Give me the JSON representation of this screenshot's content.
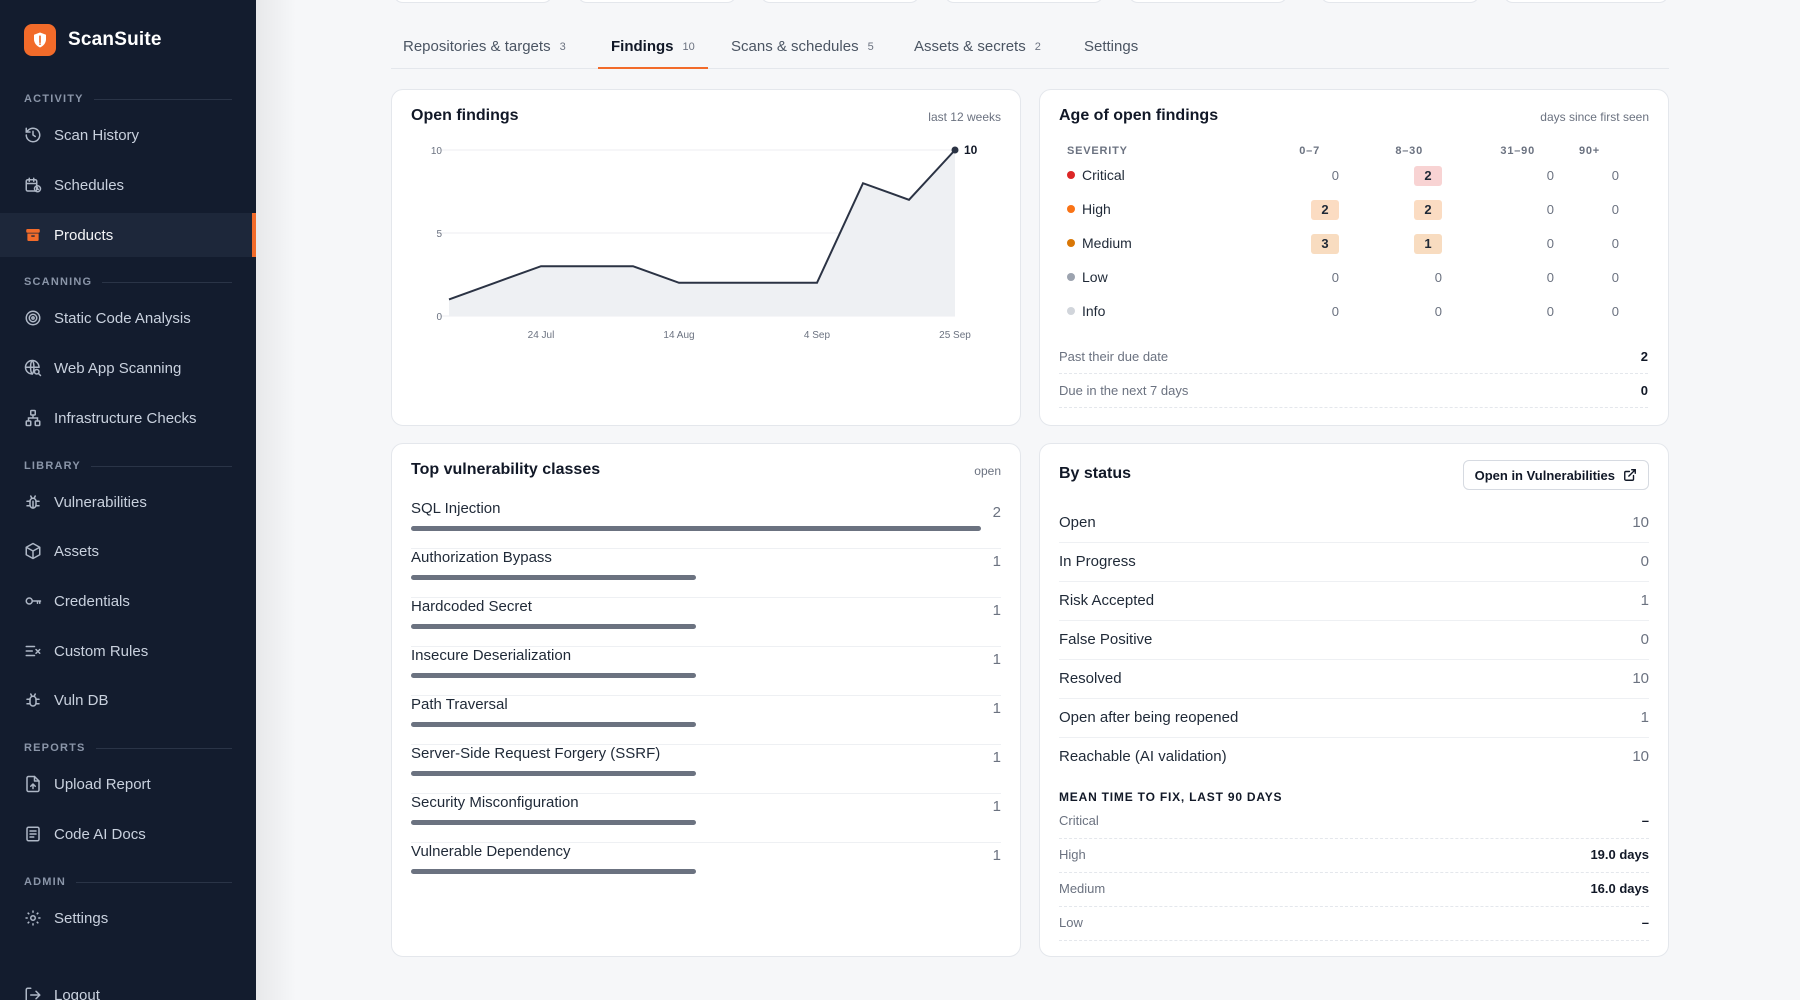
{
  "app": {
    "name": "ScanSuite"
  },
  "sidebar": {
    "sections": [
      {
        "label": "ACTIVITY"
      },
      {
        "label": "SCANNING"
      },
      {
        "label": "LIBRARY"
      },
      {
        "label": "REPORTS"
      },
      {
        "label": "ADMIN"
      }
    ],
    "items": [
      {
        "label": "Scan History"
      },
      {
        "label": "Schedules"
      },
      {
        "label": "Products"
      },
      {
        "label": "Static Code Analysis"
      },
      {
        "label": "Web App Scanning"
      },
      {
        "label": "Infrastructure Checks"
      },
      {
        "label": "Vulnerabilities"
      },
      {
        "label": "Assets"
      },
      {
        "label": "Credentials"
      },
      {
        "label": "Custom Rules"
      },
      {
        "label": "Vuln DB"
      },
      {
        "label": "Upload Report"
      },
      {
        "label": "Code AI Docs"
      },
      {
        "label": "Settings"
      },
      {
        "label": "Logout"
      }
    ],
    "accent": "#f26b2a"
  },
  "tabs": [
    {
      "label": "Repositories & targets",
      "count": "3"
    },
    {
      "label": "Findings",
      "count": "10"
    },
    {
      "label": "Scans & schedules",
      "count": "5"
    },
    {
      "label": "Assets & secrets",
      "count": "2"
    },
    {
      "label": "Settings",
      "count": ""
    }
  ],
  "open_findings": {
    "title": "Open findings",
    "meta": "last 12 weeks",
    "last_label": "10"
  },
  "chart_data": {
    "type": "area",
    "title": "Open findings",
    "x": [
      "10 Jul",
      "17 Jul",
      "24 Jul",
      "31 Jul",
      "7 Aug",
      "14 Aug",
      "21 Aug",
      "28 Aug",
      "4 Sep",
      "11 Sep",
      "18 Sep",
      "25 Sep"
    ],
    "values": [
      1,
      2,
      3,
      3,
      3,
      2,
      2,
      2,
      2,
      8,
      7,
      10
    ],
    "xticks": [
      "24 Jul",
      "14 Aug",
      "4 Sep",
      "25 Sep"
    ],
    "yticks": [
      "0",
      "5",
      "10"
    ],
    "ylim": [
      0,
      10
    ],
    "grid": true
  },
  "age": {
    "title": "Age of open findings",
    "meta": "days since first seen",
    "headers": [
      "SEVERITY",
      "0–7",
      "8–30",
      "31–90",
      "90+"
    ],
    "rows": [
      {
        "severity": "Critical",
        "color": "#dc2626",
        "values": [
          "0",
          "2",
          "0",
          "0"
        ]
      },
      {
        "severity": "High",
        "color": "#f97316",
        "values": [
          "2",
          "2",
          "0",
          "0"
        ]
      },
      {
        "severity": "Medium",
        "color": "#d97706",
        "values": [
          "3",
          "1",
          "0",
          "0"
        ]
      },
      {
        "severity": "Low",
        "color": "#9ca3af",
        "values": [
          "0",
          "0",
          "0",
          "0"
        ]
      },
      {
        "severity": "Info",
        "color": "#d1d5db",
        "values": [
          "0",
          "0",
          "0",
          "0"
        ]
      }
    ],
    "footer": [
      {
        "label": "Past their due date",
        "value": "2"
      },
      {
        "label": "Due in the next 7 days",
        "value": "0"
      }
    ]
  },
  "vuln_classes": {
    "title": "Top vulnerability classes",
    "meta": "open",
    "items": [
      {
        "name": "SQL Injection",
        "count": "2"
      },
      {
        "name": "Authorization Bypass",
        "count": "1"
      },
      {
        "name": "Hardcoded Secret",
        "count": "1"
      },
      {
        "name": "Insecure Deserialization",
        "count": "1"
      },
      {
        "name": "Path Traversal",
        "count": "1"
      },
      {
        "name": "Server-Side Request Forgery (SSRF)",
        "count": "1"
      },
      {
        "name": "Security Misconfiguration",
        "count": "1"
      },
      {
        "name": "Vulnerable Dependency",
        "count": "1"
      }
    ]
  },
  "status": {
    "title": "By status",
    "button": "Open in Vulnerabilities",
    "rows": [
      {
        "label": "Open",
        "value": "10"
      },
      {
        "label": "In Progress",
        "value": "0"
      },
      {
        "label": "Risk Accepted",
        "value": "1"
      },
      {
        "label": "False Positive",
        "value": "0"
      },
      {
        "label": "Resolved",
        "value": "10"
      },
      {
        "label": "Open after being reopened",
        "value": "1"
      },
      {
        "label": "Reachable (AI validation)",
        "value": "10"
      }
    ],
    "mttf_title": "MEAN TIME TO FIX, LAST 90 DAYS",
    "mttf": [
      {
        "label": "Critical",
        "value": "–"
      },
      {
        "label": "High",
        "value": "19.0 days"
      },
      {
        "label": "Medium",
        "value": "16.0 days"
      },
      {
        "label": "Low",
        "value": "–"
      }
    ]
  }
}
